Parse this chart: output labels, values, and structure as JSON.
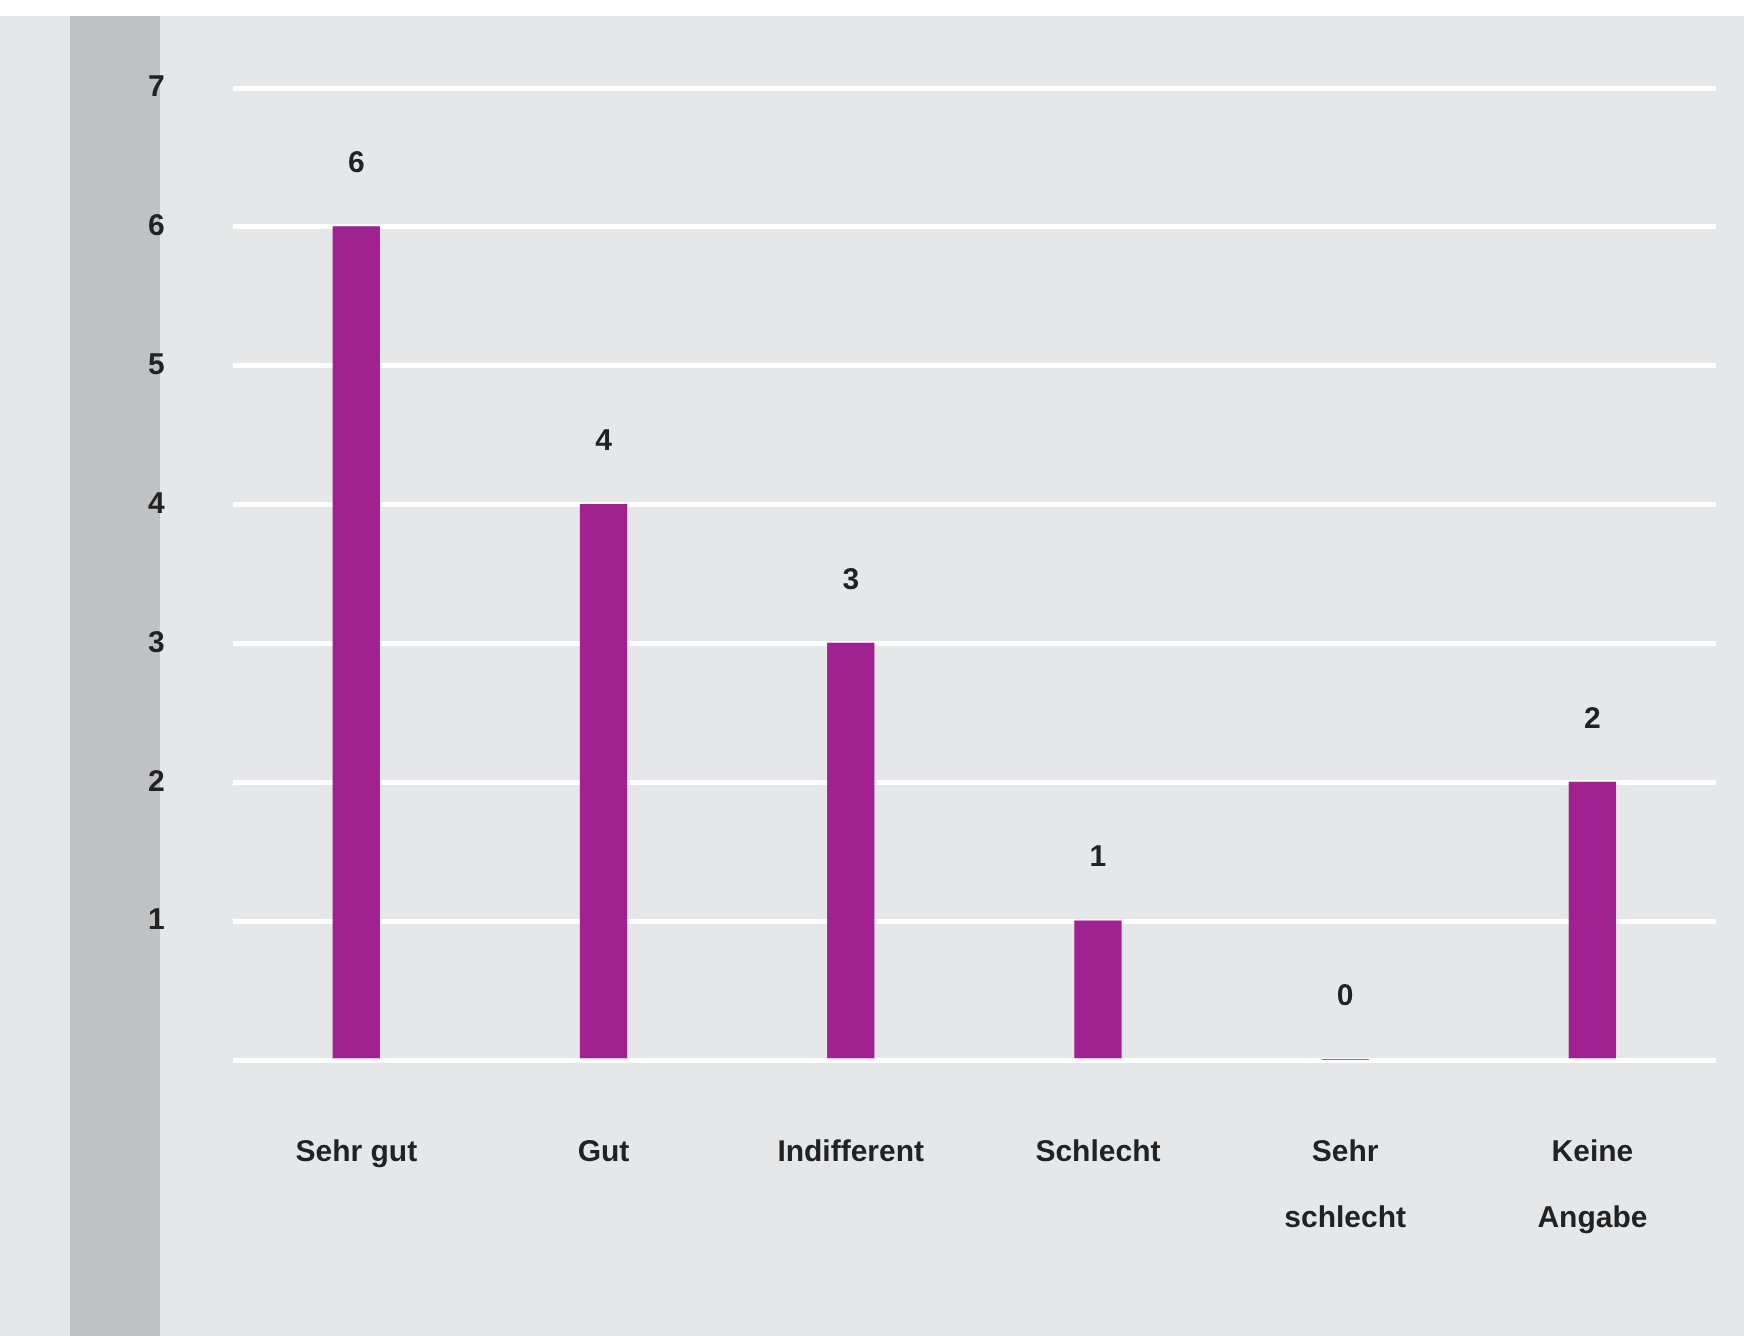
{
  "chart_data": {
    "type": "bar",
    "categories": [
      "Sehr gut",
      "Gut",
      "Indifferent",
      "Schlecht",
      "Sehr schlecht",
      "Keine Angabe"
    ],
    "values": [
      6,
      4,
      3,
      1,
      0,
      2
    ],
    "color": "#a0218f",
    "ylim": [
      0,
      7
    ],
    "yticks": [
      {
        "value": 0,
        "label": null
      },
      1,
      2,
      3,
      4,
      5,
      6,
      7
    ],
    "grid": "y",
    "legend": false,
    "data_labels": true
  }
}
